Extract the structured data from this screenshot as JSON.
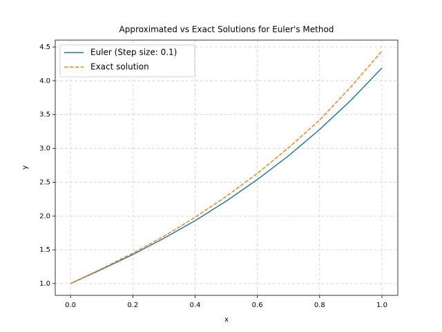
{
  "chart_data": {
    "type": "line",
    "title": "Approximated vs Exact Solutions for Euler's Method",
    "x_label": "x",
    "y_label": "y",
    "x": [
      0.0,
      0.1,
      0.2,
      0.3,
      0.4,
      0.5,
      0.6,
      0.7,
      0.8,
      0.9,
      1.0
    ],
    "series": [
      {
        "name": "Euler (Step size: 0.1)",
        "color": "#1f77b4",
        "dashed": false,
        "values": [
          1.0,
          1.21,
          1.43,
          1.67,
          1.93,
          2.22,
          2.54,
          2.89,
          3.28,
          3.71,
          4.19
        ]
      },
      {
        "name": "Exact solution",
        "color": "#ff7f0e",
        "dashed": true,
        "values": [
          1.0,
          1.22,
          1.45,
          1.7,
          1.98,
          2.29,
          2.63,
          3.01,
          3.42,
          3.91,
          4.44
        ]
      }
    ],
    "xlim": [
      -0.049,
      1.051
    ],
    "ylim": [
      0.826,
      4.602
    ],
    "xticks": [
      {
        "value": 0,
        "label": "0.0"
      },
      0.2,
      0.4,
      0.6,
      0.8,
      {
        "value": 1,
        "label": "1.0"
      }
    ],
    "yticks": [
      {
        "value": 1,
        "label": "1.0"
      },
      1.5,
      {
        "value": 2,
        "label": "2.0"
      },
      2.5,
      {
        "value": 3,
        "label": "3.0"
      },
      3.5,
      {
        "value": 4,
        "label": "4.0"
      },
      4.5
    ],
    "grid": true,
    "legend": "upper-left"
  }
}
